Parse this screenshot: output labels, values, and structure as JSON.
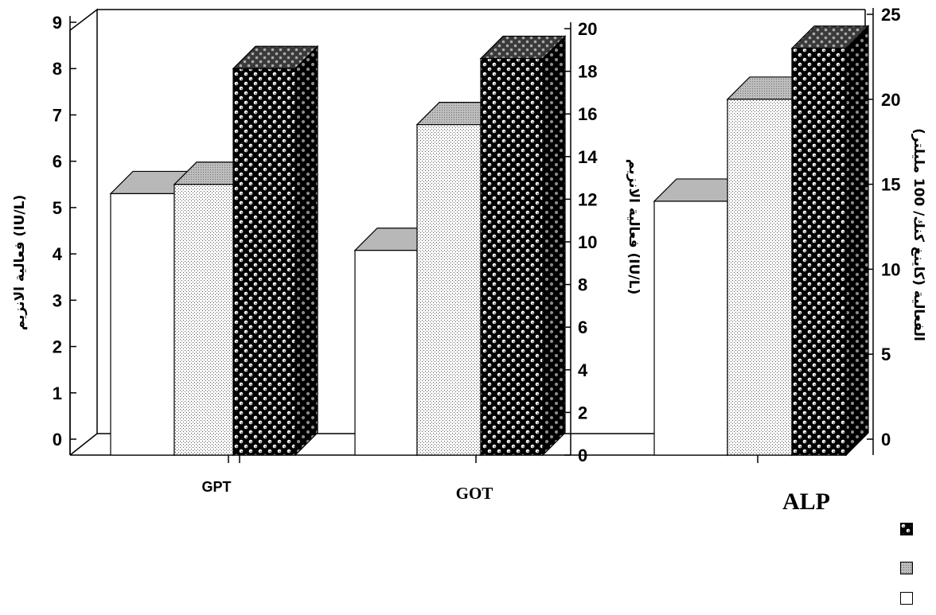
{
  "chart_data": [
    {
      "type": "bar",
      "title": "",
      "categories": [
        "GPT"
      ],
      "axis": "left",
      "ylabel": "فعالية الانزيم (IU/L)",
      "yticks": [
        "0",
        "1",
        "2",
        "3",
        "4",
        "5",
        "6",
        "7",
        "8",
        "9"
      ],
      "ylim": [
        0,
        9
      ],
      "series": [
        {
          "values": [
            5.3
          ]
        },
        {
          "values": [
            5.5
          ]
        },
        {
          "values": [
            8.0
          ]
        }
      ]
    },
    {
      "type": "bar",
      "title": "",
      "categories": [
        "GOT"
      ],
      "axis": "middle",
      "ylabel": "فعالية الانزيم (IU/L)",
      "yticks": [
        "0",
        "2",
        "4",
        "6",
        "8",
        "10",
        "12",
        "14",
        "16",
        "18",
        "20"
      ],
      "ylim": [
        0,
        20
      ],
      "series": [
        {
          "values": [
            9.6
          ]
        },
        {
          "values": [
            15.5
          ]
        },
        {
          "values": [
            18.6
          ]
        }
      ]
    },
    {
      "type": "bar",
      "title": "",
      "categories": [
        "ALP"
      ],
      "axis": "right",
      "ylabel": "الفعالية (كاينغ كنك/ 100 مليلتر)",
      "yticks": [
        "0",
        "5",
        "10",
        "15",
        "20",
        "25"
      ],
      "ylim": [
        0,
        25
      ],
      "series": [
        {
          "values": [
            14.0
          ]
        },
        {
          "values": [
            20.0
          ]
        },
        {
          "values": [
            23.0
          ]
        }
      ]
    }
  ],
  "legend": {
    "placement": "right",
    "items": [
      {
        "pattern": "checker-dark",
        "color": "#000000"
      },
      {
        "pattern": "dots-grey",
        "color": "#9a9a9a"
      },
      {
        "pattern": "white",
        "color": "#ffffff"
      }
    ]
  },
  "colors": {
    "bar_top": "#b8b8b8",
    "bar_side": "#7a7a7a",
    "ink": "#000000",
    "background": "#ffffff"
  },
  "grid": false
}
